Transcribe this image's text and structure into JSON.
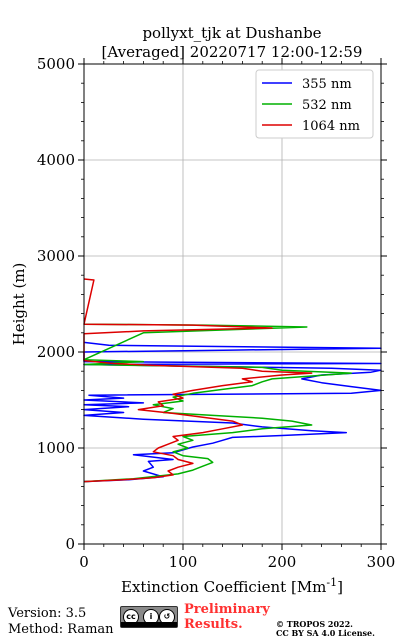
{
  "chart_data": {
    "type": "line",
    "title": "pollyxt_tjk at Dushanbe",
    "subtitle": "[Averaged] 20220717 12:00-12:59",
    "xlabel": "Extinction Coefficient [Mm",
    "xlabel_exponent": "-1",
    "xlabel_close": "]",
    "ylabel": "Height (m)",
    "xlim": [
      0,
      300
    ],
    "ylim": [
      0,
      5000
    ],
    "xticks": [
      0,
      100,
      200,
      300
    ],
    "yticks": [
      0,
      1000,
      2000,
      3000,
      4000,
      5000
    ],
    "grid": true,
    "legend_position": "top-right",
    "series": [
      {
        "name": "355 nm",
        "color": "#0000ff",
        "points": [
          [
            0,
            650
          ],
          [
            45,
            670
          ],
          [
            80,
            700
          ],
          [
            60,
            760
          ],
          [
            70,
            800
          ],
          [
            65,
            860
          ],
          [
            90,
            880
          ],
          [
            50,
            930
          ],
          [
            90,
            950
          ],
          [
            100,
            980
          ],
          [
            110,
            1010
          ],
          [
            130,
            1050
          ],
          [
            140,
            1080
          ],
          [
            150,
            1110
          ],
          [
            200,
            1130
          ],
          [
            265,
            1160
          ],
          [
            230,
            1180
          ],
          [
            180,
            1220
          ],
          [
            150,
            1260
          ],
          [
            60,
            1300
          ],
          [
            0,
            1340
          ],
          [
            40,
            1370
          ],
          [
            0,
            1400
          ],
          [
            45,
            1430
          ],
          [
            0,
            1450
          ],
          [
            60,
            1470
          ],
          [
            0,
            1500
          ],
          [
            40,
            1520
          ],
          [
            5,
            1550
          ],
          [
            270,
            1570
          ],
          [
            300,
            1600
          ],
          [
            270,
            1640
          ],
          [
            240,
            1680
          ],
          [
            220,
            1720
          ],
          [
            240,
            1760
          ],
          [
            290,
            1790
          ],
          [
            300,
            1810
          ],
          [
            250,
            1830
          ],
          [
            0,
            1870
          ],
          [
            300,
            1880
          ],
          [
            0,
            1900
          ],
          [
            0,
            2000
          ],
          [
            150,
            2020
          ],
          [
            300,
            2040
          ],
          [
            25,
            2070
          ],
          [
            0,
            2100
          ]
        ]
      },
      {
        "name": "532 nm",
        "color": "#00b000",
        "points": [
          [
            0,
            650
          ],
          [
            50,
            680
          ],
          [
            95,
            730
          ],
          [
            110,
            770
          ],
          [
            120,
            810
          ],
          [
            130,
            850
          ],
          [
            125,
            890
          ],
          [
            100,
            920
          ],
          [
            90,
            960
          ],
          [
            105,
            1000
          ],
          [
            95,
            1040
          ],
          [
            110,
            1080
          ],
          [
            100,
            1120
          ],
          [
            150,
            1160
          ],
          [
            180,
            1200
          ],
          [
            230,
            1240
          ],
          [
            210,
            1280
          ],
          [
            180,
            1310
          ],
          [
            130,
            1340
          ],
          [
            80,
            1370
          ],
          [
            90,
            1410
          ],
          [
            70,
            1450
          ],
          [
            100,
            1490
          ],
          [
            90,
            1530
          ],
          [
            110,
            1570
          ],
          [
            140,
            1610
          ],
          [
            170,
            1650
          ],
          [
            180,
            1690
          ],
          [
            190,
            1720
          ],
          [
            230,
            1750
          ],
          [
            270,
            1780
          ],
          [
            200,
            1810
          ],
          [
            180,
            1840
          ],
          [
            0,
            1870
          ],
          [
            60,
            1900
          ],
          [
            0,
            1920
          ],
          [
            60,
            2200
          ],
          [
            225,
            2260
          ],
          [
            120,
            2280
          ],
          [
            0,
            2290
          ]
        ]
      },
      {
        "name": "1064 nm",
        "color": "#dd0000",
        "points": [
          [
            0,
            650
          ],
          [
            40,
            670
          ],
          [
            70,
            690
          ],
          [
            90,
            720
          ],
          [
            85,
            760
          ],
          [
            95,
            800
          ],
          [
            110,
            840
          ],
          [
            95,
            880
          ],
          [
            90,
            920
          ],
          [
            70,
            960
          ],
          [
            75,
            1000
          ],
          [
            85,
            1040
          ],
          [
            95,
            1080
          ],
          [
            90,
            1120
          ],
          [
            120,
            1160
          ],
          [
            140,
            1200
          ],
          [
            160,
            1240
          ],
          [
            150,
            1280
          ],
          [
            120,
            1320
          ],
          [
            90,
            1360
          ],
          [
            55,
            1400
          ],
          [
            80,
            1440
          ],
          [
            75,
            1480
          ],
          [
            100,
            1520
          ],
          [
            90,
            1560
          ],
          [
            110,
            1600
          ],
          [
            140,
            1650
          ],
          [
            170,
            1690
          ],
          [
            160,
            1720
          ],
          [
            200,
            1760
          ],
          [
            230,
            1780
          ],
          [
            180,
            1800
          ],
          [
            160,
            1830
          ],
          [
            70,
            1860
          ],
          [
            30,
            1880
          ],
          [
            0,
            1910
          ],
          [
            0,
            2190
          ],
          [
            60,
            2220
          ],
          [
            190,
            2250
          ],
          [
            110,
            2280
          ],
          [
            0,
            2290
          ],
          [
            10,
            2750
          ],
          [
            0,
            2760
          ]
        ]
      }
    ]
  },
  "footer": {
    "version": "Version: 3.5",
    "method": "Method: Raman",
    "prelim_line1": "Preliminary",
    "prelim_line2": "Results.",
    "copyright_line1": "© TROPOS 2022.",
    "copyright_line2": "CC BY SA 4.0 License.",
    "badge_text": "cc BY SA"
  }
}
